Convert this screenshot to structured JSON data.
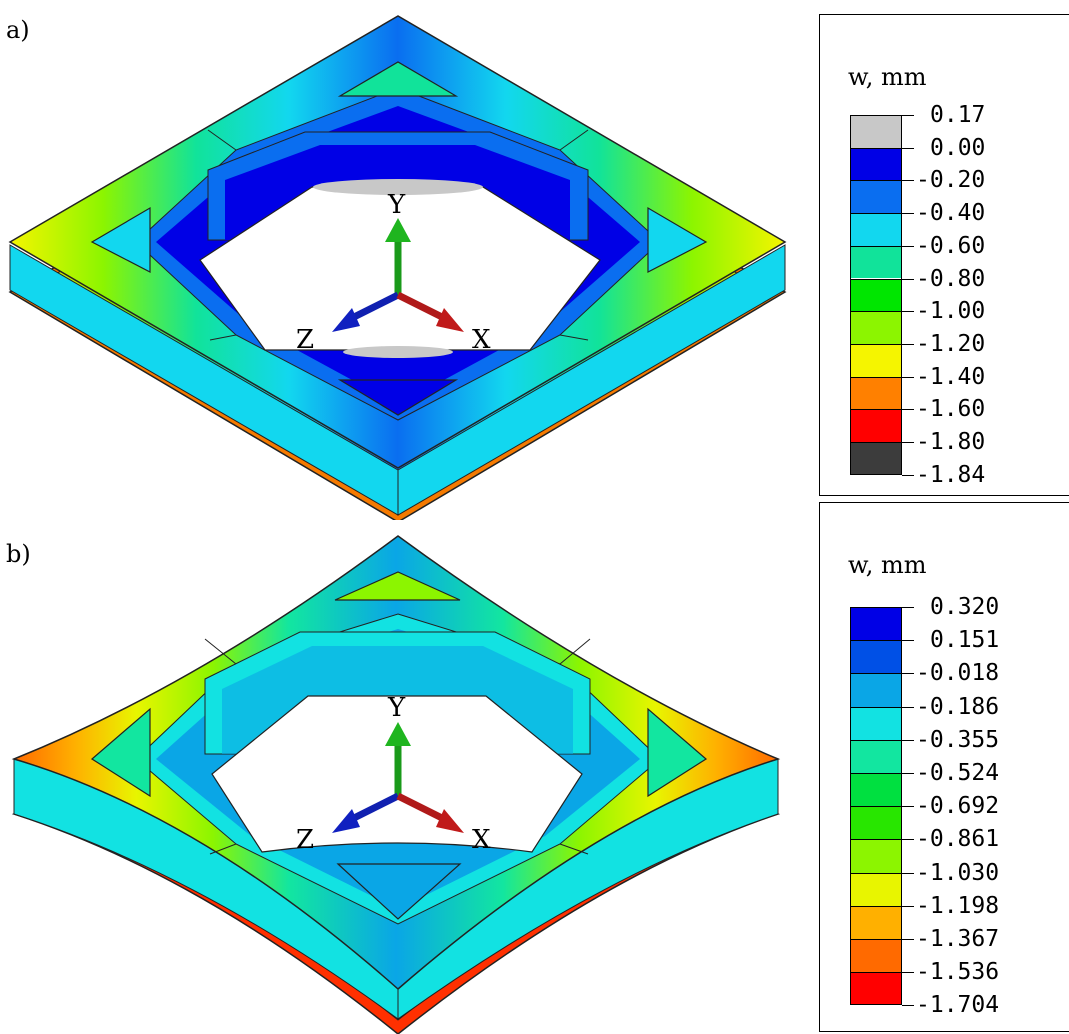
{
  "panels": [
    {
      "label": "a)",
      "legend": {
        "title": "w, mm",
        "levels": [
          "0.17",
          "0.00",
          "-0.20",
          "-0.40",
          "-0.60",
          "-0.80",
          "-1.00",
          "-1.20",
          "-1.40",
          "-1.60",
          "-1.80",
          "-1.84"
        ],
        "colors": [
          "#c8c8c8",
          "#0000e6",
          "#0a6ef0",
          "#12d7ef",
          "#11e39a",
          "#00e600",
          "#8cf500",
          "#f5f500",
          "#ff8000",
          "#ff0000",
          "#3c3c3c"
        ]
      },
      "axes": {
        "y": "Y",
        "z": "Z",
        "x": "X"
      }
    },
    {
      "label": "b)",
      "legend": {
        "title": "w, mm",
        "levels": [
          "0.320",
          "0.151",
          "-0.018",
          "-0.186",
          "-0.355",
          "-0.524",
          "-0.692",
          "-0.861",
          "-1.030",
          "-1.198",
          "-1.367",
          "-1.536",
          "-1.704"
        ],
        "colors": [
          "#0000e6",
          "#0050e6",
          "#0aa6e6",
          "#12e2e2",
          "#12e6a0",
          "#00e040",
          "#28e600",
          "#8cf500",
          "#e8f500",
          "#ffb000",
          "#ff6a00",
          "#ff0000"
        ]
      },
      "axes": {
        "y": "Y",
        "z": "Z",
        "x": "X"
      }
    }
  ]
}
